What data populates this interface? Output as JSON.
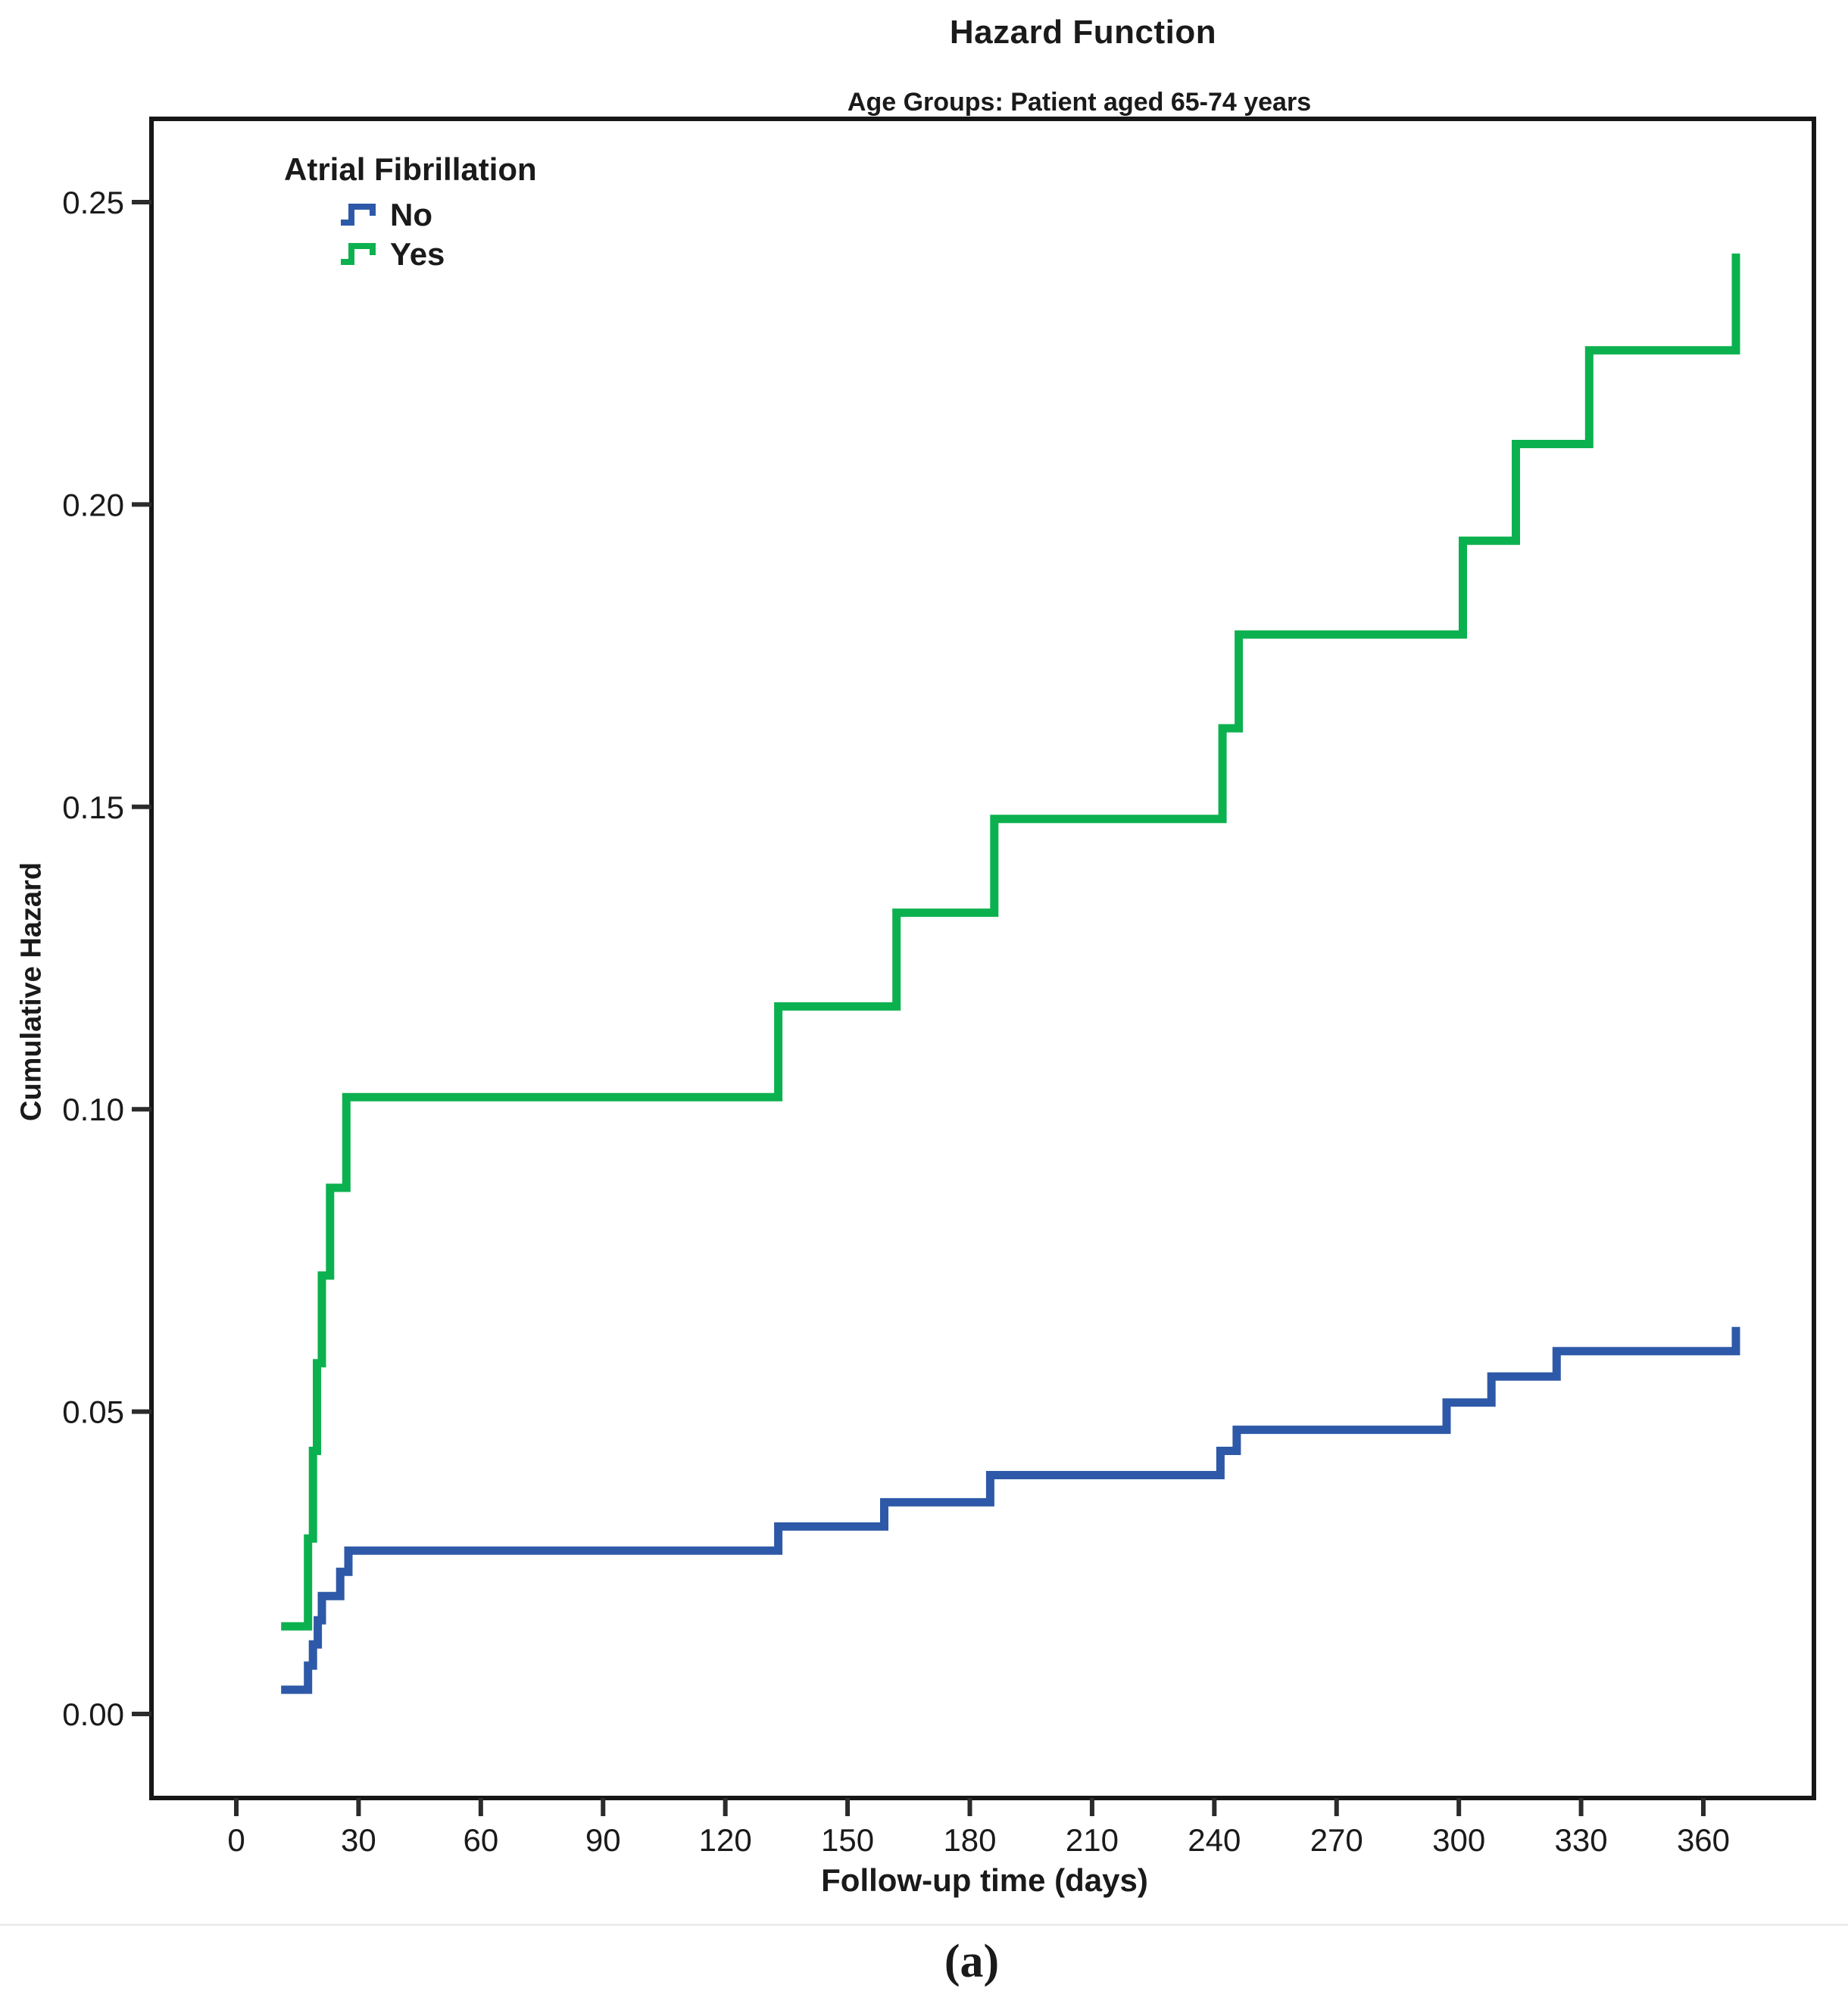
{
  "figure": {
    "caption": "(a)"
  },
  "chart_data": {
    "type": "line",
    "subtype": "step-cumulative-hazard",
    "title": "Hazard Function",
    "subtitle": "Age Groups: Patient aged 65-74 years",
    "xlabel": "Follow-up time (days)",
    "ylabel": "Cumulative Hazard",
    "caption": "(a)",
    "xlim": [
      0,
      360
    ],
    "ylim": [
      0,
      0.25
    ],
    "grid": false,
    "x_ticks": [
      0,
      30,
      60,
      90,
      120,
      150,
      180,
      210,
      240,
      270,
      300,
      330,
      360
    ],
    "y_ticks": [
      {
        "value": 0.25,
        "label": "0.25"
      },
      {
        "value": 0.2,
        "label": "0.20"
      },
      {
        "value": 0.15,
        "label": "0.15"
      },
      {
        "value": 0.1,
        "label": "0.10"
      },
      {
        "value": 0.05,
        "label": "0.05"
      },
      {
        "value": 0.0,
        "label": "0.00"
      }
    ],
    "legend": {
      "title": "Atrial Fibrillation",
      "position": "top-left",
      "items": [
        {
          "label": "No",
          "color": "#2E59A8"
        },
        {
          "label": "Yes",
          "color": "#0CB14F"
        }
      ]
    },
    "series": [
      {
        "name": "No",
        "color": "#2E59A8",
        "steps": [
          [
            11,
            0.004
          ],
          [
            17.6,
            0.008
          ],
          [
            18.8,
            0.0115
          ],
          [
            20,
            0.0155
          ],
          [
            21,
            0.0195
          ],
          [
            25.5,
            0.0235
          ],
          [
            27.5,
            0.027
          ],
          [
            133,
            0.031
          ],
          [
            159,
            0.035
          ],
          [
            185,
            0.0395
          ],
          [
            241.5,
            0.0435
          ],
          [
            245.5,
            0.047
          ],
          [
            297,
            0.0515
          ],
          [
            308,
            0.0558
          ],
          [
            324,
            0.06
          ],
          [
            368,
            0.064
          ]
        ]
      },
      {
        "name": "Yes",
        "color": "#0CB14F",
        "steps": [
          [
            11,
            0.0145
          ],
          [
            17.6,
            0.029
          ],
          [
            18.8,
            0.0435
          ],
          [
            19.8,
            0.058
          ],
          [
            21,
            0.0725
          ],
          [
            23,
            0.087
          ],
          [
            27,
            0.102
          ],
          [
            133,
            0.117
          ],
          [
            162,
            0.1325
          ],
          [
            186,
            0.148
          ],
          [
            242,
            0.163
          ],
          [
            246,
            0.1785
          ],
          [
            301,
            0.194
          ],
          [
            314,
            0.21
          ],
          [
            332,
            0.2255
          ],
          [
            368,
            0.2415
          ]
        ]
      }
    ]
  }
}
